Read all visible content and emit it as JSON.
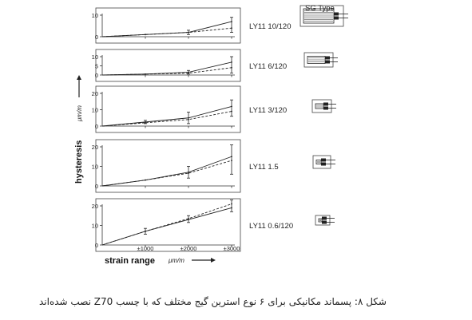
{
  "figure": {
    "sg_type_heading": "SG Type",
    "y_label": "hysteresis",
    "y_unit": "μm/m",
    "x_label": "strain range",
    "x_unit": "μm/m",
    "x_ticks": [
      "±1000",
      "±2000",
      "±3000"
    ],
    "caption": "شکل ۸: پسماند مکانیکی برای ۶ نوع استرین گیج مختلف که با چسب Z70 نصب شده‌اند"
  },
  "chart_data": [
    {
      "type": "line",
      "label": "LY11 10/120",
      "x": [
        0,
        1000,
        2000,
        3000
      ],
      "ylim": [
        0,
        10
      ],
      "y_ticks": [
        0,
        10
      ],
      "series": [
        {
          "style": "solid",
          "values": [
            0,
            1,
            2,
            7
          ]
        },
        {
          "style": "dashed",
          "values": [
            0,
            1,
            2,
            4
          ]
        }
      ],
      "error_bars": [
        {
          "x": 2000,
          "low": 1,
          "high": 3
        },
        {
          "x": 3000,
          "low": 2,
          "high": 9
        }
      ]
    },
    {
      "type": "line",
      "label": "LY11 6/120",
      "x": [
        0,
        1000,
        2000,
        3000
      ],
      "ylim": [
        0,
        10
      ],
      "y_ticks": [
        0,
        5,
        10
      ],
      "series": [
        {
          "style": "solid",
          "values": [
            0,
            0.5,
            1.5,
            7
          ]
        },
        {
          "style": "dashed",
          "values": [
            0,
            0.5,
            1,
            4
          ]
        }
      ],
      "error_bars": [
        {
          "x": 2000,
          "low": 0.5,
          "high": 2.5
        },
        {
          "x": 3000,
          "low": 1,
          "high": 10
        }
      ]
    },
    {
      "type": "line",
      "label": "LY11 3/120",
      "x": [
        0,
        1000,
        2000,
        3000
      ],
      "ylim": [
        0,
        20
      ],
      "y_ticks": [
        0,
        10,
        20
      ],
      "series": [
        {
          "style": "solid",
          "values": [
            0,
            2.5,
            5,
            12
          ]
        },
        {
          "style": "dashed",
          "values": [
            0,
            2,
            4,
            9
          ]
        }
      ],
      "error_bars": [
        {
          "x": 1000,
          "low": 1.5,
          "high": 3.5
        },
        {
          "x": 2000,
          "low": 1.5,
          "high": 8.5
        },
        {
          "x": 3000,
          "low": 6,
          "high": 16
        }
      ]
    },
    {
      "type": "line",
      "label": "LY11 1.5",
      "x": [
        0,
        1000,
        2000,
        3000
      ],
      "ylim": [
        0,
        20
      ],
      "y_ticks": [
        0,
        10,
        20
      ],
      "series": [
        {
          "style": "solid",
          "values": [
            0,
            3,
            7,
            15
          ]
        },
        {
          "style": "dashed",
          "values": [
            0,
            3,
            6.5,
            13
          ]
        }
      ],
      "error_bars": [
        {
          "x": 2000,
          "low": 4,
          "high": 10
        },
        {
          "x": 3000,
          "low": 6,
          "high": 21
        }
      ]
    },
    {
      "type": "line",
      "label": "LY11 0.6/120",
      "x": [
        0,
        1000,
        2000,
        3000
      ],
      "ylim": [
        0,
        20
      ],
      "y_ticks": [
        0,
        10,
        20
      ],
      "series": [
        {
          "style": "solid",
          "values": [
            0,
            7,
            13,
            19
          ]
        },
        {
          "style": "dashed",
          "values": [
            0,
            7,
            13.5,
            21
          ]
        }
      ],
      "error_bars": [
        {
          "x": 1000,
          "low": 5.5,
          "high": 8.5
        },
        {
          "x": 2000,
          "low": 11.5,
          "high": 15
        },
        {
          "x": 3000,
          "low": 17,
          "high": 23
        }
      ]
    }
  ]
}
